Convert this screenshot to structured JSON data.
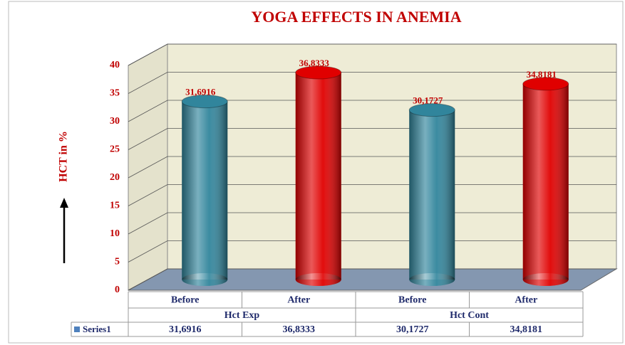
{
  "chart_data": {
    "type": "bar",
    "title": "YOGA EFFECTS IN ANEMIA",
    "y_label": "HCT in %",
    "categories": [
      "Before",
      "After",
      "Before",
      "After"
    ],
    "groups": [
      "Hct Exp",
      "Hct Cont"
    ],
    "series": [
      {
        "name": "Series1",
        "color": "#4f81bd",
        "bar_colors": [
          "#31859c",
          "#e00000",
          "#31859c",
          "#e00000"
        ],
        "values": [
          31.6916,
          36.8333,
          30.1727,
          34.8181
        ],
        "value_labels": [
          "31,6916",
          "36,8333",
          "30,1727",
          "34,8181"
        ]
      }
    ],
    "ylim": [
      0,
      40
    ],
    "yticks": [
      0,
      5,
      10,
      15,
      20,
      25,
      30,
      35,
      40
    ],
    "grid": true
  }
}
